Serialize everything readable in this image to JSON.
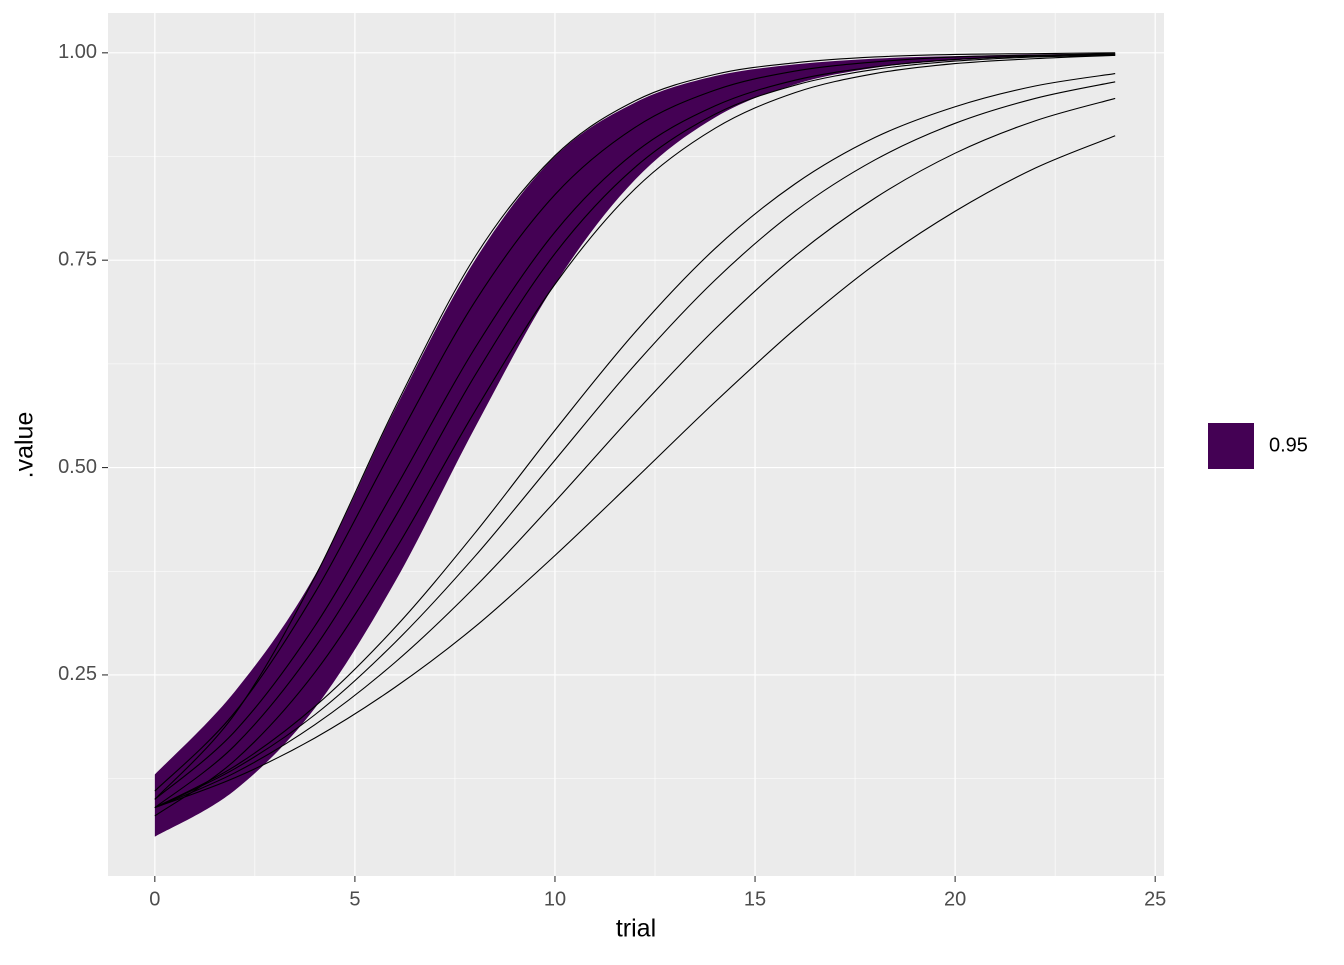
{
  "chart_data": {
    "type": "line",
    "x_label": "trial",
    "y_label": ".value",
    "x": [
      0,
      2,
      4,
      6,
      8,
      10,
      12,
      14,
      16,
      18,
      20,
      22,
      24
    ],
    "ribbon": {
      "name": "0.95",
      "color": "#440154",
      "lower": [
        0.055,
        0.111,
        0.21,
        0.362,
        0.548,
        0.721,
        0.847,
        0.922,
        0.962,
        0.982,
        0.991,
        0.996,
        0.998
      ],
      "upper": [
        0.13,
        0.23,
        0.37,
        0.57,
        0.75,
        0.875,
        0.94,
        0.972,
        0.986,
        0.993,
        0.996,
        0.998,
        0.999
      ]
    },
    "series": [
      {
        "color": "#000000",
        "values": [
          0.1,
          0.203,
          0.368,
          0.572,
          0.754,
          0.876,
          0.942,
          0.974,
          0.988,
          0.995,
          0.998,
          0.999,
          1.0
        ]
      },
      {
        "color": "#000000",
        "values": [
          0.11,
          0.205,
          0.349,
          0.528,
          0.7,
          0.829,
          0.91,
          0.955,
          0.978,
          0.989,
          0.995,
          0.997,
          0.999
        ]
      },
      {
        "color": "#000000",
        "values": [
          0.09,
          0.165,
          0.283,
          0.44,
          0.611,
          0.758,
          0.862,
          0.926,
          0.961,
          0.98,
          0.99,
          0.995,
          0.997
        ]
      },
      {
        "color": "#000000",
        "values": [
          0.08,
          0.147,
          0.253,
          0.4,
          0.568,
          0.721,
          0.836,
          0.909,
          0.952,
          0.975,
          0.987,
          0.993,
          0.997
        ]
      },
      {
        "color": "#000000",
        "values": [
          0.1,
          0.182,
          0.309,
          0.474,
          0.644,
          0.784,
          0.88,
          0.936,
          0.967,
          0.983,
          0.992,
          0.996,
          0.998
        ]
      },
      {
        "color": "#000000",
        "values": [
          0.09,
          0.126,
          0.174,
          0.235,
          0.308,
          0.394,
          0.486,
          0.579,
          0.667,
          0.745,
          0.809,
          0.861,
          0.9
        ]
      },
      {
        "color": "#000000",
        "values": [
          0.09,
          0.132,
          0.19,
          0.265,
          0.356,
          0.459,
          0.566,
          0.667,
          0.755,
          0.825,
          0.879,
          0.918,
          0.945
        ]
      },
      {
        "color": "#000000",
        "values": [
          0.09,
          0.137,
          0.202,
          0.289,
          0.393,
          0.509,
          0.624,
          0.726,
          0.809,
          0.871,
          0.915,
          0.945,
          0.965
        ]
      },
      {
        "color": "#000000",
        "values": [
          0.09,
          0.14,
          0.212,
          0.307,
          0.421,
          0.545,
          0.663,
          0.764,
          0.842,
          0.898,
          0.935,
          0.96,
          0.975
        ]
      }
    ],
    "xlim": [
      -1.17,
      25.22
    ],
    "ylim": [
      0.0076,
      1.048
    ],
    "xticks": [
      0,
      5,
      10,
      15,
      20,
      25
    ],
    "yticks": [
      0.25,
      {
        "value": 0.5,
        "label": "0.50"
      },
      0.75,
      {
        "value": 1,
        "label": "1.00"
      }
    ],
    "grid": true
  }
}
